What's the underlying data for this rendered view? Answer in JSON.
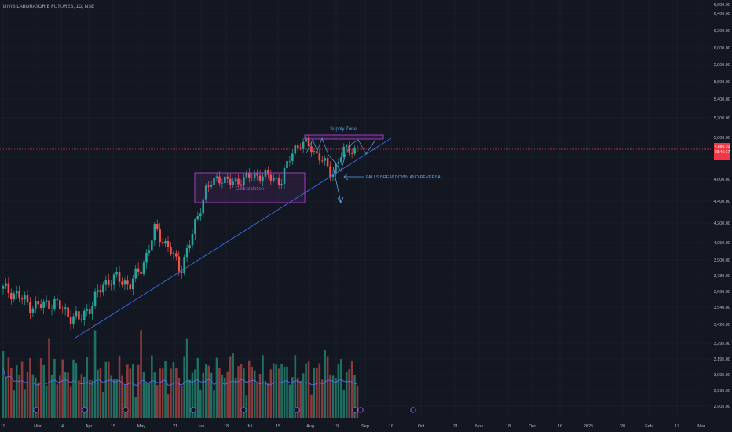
{
  "header": {
    "symbol_label": "DIVIS LABORATORIE FUTURES, 1D, NSE"
  },
  "price_tag": {
    "price": "4,880.10",
    "countdown": "03:45:17"
  },
  "colors": {
    "background": "#131722",
    "up": "#26a69a",
    "down": "#ef5350",
    "volume_ma": "#5b6ee8",
    "trendline": "#3d6be6",
    "box": "#b040d0",
    "price_line": "#f23645"
  },
  "annotations": {
    "supply_zone": "Supply Zone",
    "consolidation": "Consolidation",
    "falls_breakdown": "FALLS BREAKDOWN AND REVERSAL"
  },
  "chart_data": {
    "type": "candlestick",
    "price_axis": {
      "ticks": [
        "6,600.00",
        "6,400.00",
        "6,200.00",
        "6,000.00",
        "5,800.00",
        "5,600.00",
        "5,400.00",
        "5,200.00",
        "5,000.00",
        "4,800.00",
        "4,600.00",
        "4,400.00",
        "4,200.00",
        "4,050.00",
        "3,900.00",
        "3,780.00",
        "3,660.00",
        "3,540.00",
        "3,420.00",
        "3,295.00",
        "3,195.00",
        "3,095.00",
        "2,995.00",
        "2,905.00"
      ],
      "scale": "log"
    },
    "time_axis": {
      "ticks": [
        "19",
        "Mar",
        "14",
        "Apr",
        "15",
        "May",
        "21",
        "Jun",
        "18",
        "Jul",
        "15",
        "Aug",
        "19",
        "Sep",
        "16",
        "Oct",
        "21",
        "Nov",
        "18",
        "Dec",
        "16",
        "2025",
        "20",
        "Feb",
        "17",
        "Mar"
      ]
    },
    "series": [
      {
        "kind": "ohlc",
        "note": "daily OHLC from Feb to late Aug 2024",
        "close_path": [
          [
            "Feb 19",
            3680
          ],
          [
            "Feb 26",
            3640
          ],
          [
            "Mar 4",
            3560
          ],
          [
            "Mar 11",
            3550
          ],
          [
            "Mar 18",
            3580
          ],
          [
            "Mar 25",
            3500
          ],
          [
            "Apr 1",
            3450
          ],
          [
            "Apr 8",
            3560
          ],
          [
            "Apr 15",
            3730
          ],
          [
            "Apr 22",
            3760
          ],
          [
            "Apr 29",
            3710
          ],
          [
            "May 6",
            3850
          ],
          [
            "May 13",
            4150
          ],
          [
            "May 20",
            4020
          ],
          [
            "May 27",
            3820
          ],
          [
            "Jun 3",
            4120
          ],
          [
            "Jun 10",
            4500
          ],
          [
            "Jun 17",
            4620
          ],
          [
            "Jun 24",
            4560
          ],
          [
            "Jul 1",
            4600
          ],
          [
            "Jul 8",
            4640
          ],
          [
            "Jul 15",
            4620
          ],
          [
            "Jul 22",
            4580
          ],
          [
            "Jul 29",
            4900
          ],
          [
            "Aug 5",
            4940
          ],
          [
            "Aug 12",
            4800
          ],
          [
            "Aug 19",
            4650
          ],
          [
            "Aug 26",
            4880
          ],
          [
            "Aug 30",
            4880
          ]
        ]
      }
    ],
    "last_price": 4880.1,
    "volume": {
      "shown": true,
      "moving_average": true
    }
  }
}
